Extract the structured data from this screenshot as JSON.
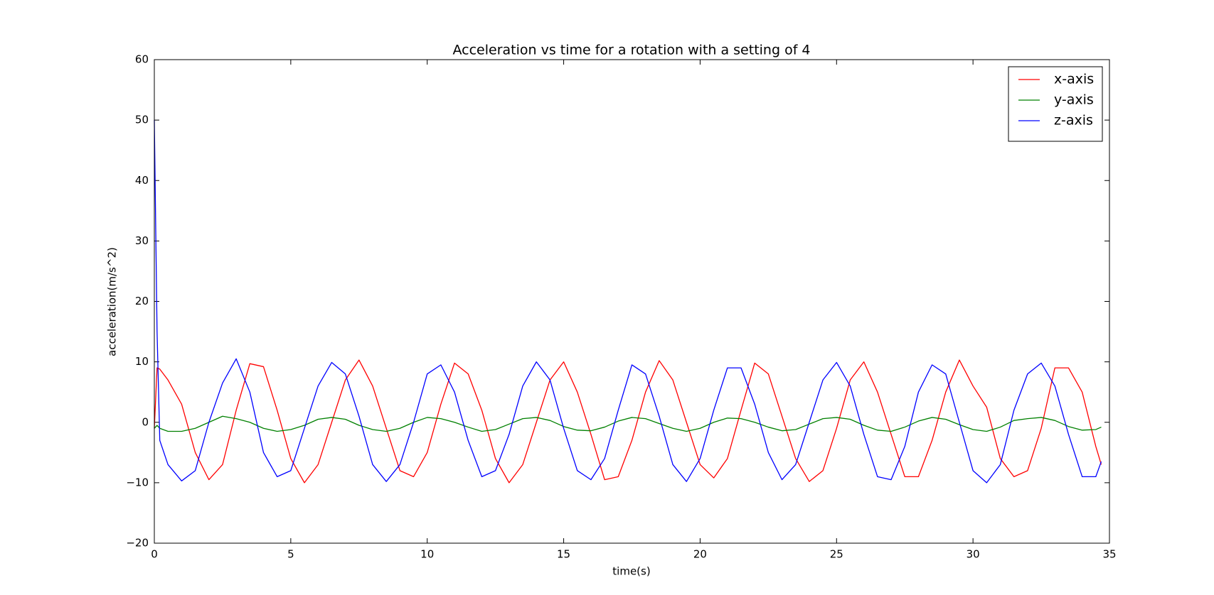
{
  "chart_data": {
    "type": "line",
    "title": "Acceleration vs time for a rotation with a setting of 4",
    "x_label": "time(s)",
    "y_label": "acceleration(m/s^2)",
    "xlim": [
      0,
      35
    ],
    "ylim": [
      -20,
      60
    ],
    "xticks": [
      0,
      5,
      10,
      15,
      20,
      25,
      30,
      35
    ],
    "yticks": [
      {
        "value": -20,
        "label": "−20"
      },
      {
        "value": -10,
        "label": "−10"
      },
      0,
      10,
      20,
      30,
      40,
      50,
      60
    ],
    "legend": "upper right",
    "x": [
      0,
      0.1,
      0.2,
      0.5,
      1,
      1.5,
      2,
      2.5,
      3,
      3.5,
      4,
      4.5,
      5,
      5.5,
      6,
      6.5,
      7,
      7.5,
      8,
      8.5,
      9,
      9.5,
      10,
      10.5,
      11,
      11.5,
      12,
      12.5,
      13,
      13.5,
      14,
      14.5,
      15,
      15.5,
      16,
      16.5,
      17,
      17.5,
      18,
      18.5,
      19,
      19.5,
      20,
      20.5,
      21,
      21.5,
      22,
      22.5,
      23,
      23.5,
      24,
      24.5,
      25,
      25.5,
      26,
      26.5,
      27,
      27.5,
      28,
      28.5,
      29,
      29.5,
      30,
      30.5,
      31,
      31.5,
      32,
      32.5,
      33,
      33.5,
      34,
      34.5,
      34.7
    ],
    "series": [
      {
        "name": "x-axis",
        "color": "#ff0000",
        "values": [
          -1,
          9,
          8.8,
          7,
          3,
          -5,
          -9.5,
          -7,
          2,
          9.7,
          9.2,
          2,
          -6,
          -10,
          -7,
          0,
          7,
          10.3,
          6,
          -1,
          -8,
          -9,
          -5,
          3,
          9.8,
          8,
          2,
          -6,
          -10,
          -7,
          0,
          7,
          10,
          5,
          -2,
          -9.5,
          -9,
          -3,
          5,
          10.2,
          7,
          0,
          -7,
          -9.2,
          -6,
          2,
          9.8,
          8,
          1,
          -6,
          -9.8,
          -8,
          -1,
          7,
          10,
          5,
          -2,
          -9,
          -9,
          -3,
          5,
          10.3,
          6,
          2.5,
          -6,
          -9,
          -8,
          -1,
          9,
          9,
          5,
          -4,
          -7
        ]
      },
      {
        "name": "y-axis",
        "color": "#008000",
        "values": [
          -1,
          -0.5,
          -1,
          -1.5,
          -1.5,
          -1,
          0,
          1,
          0.6,
          0,
          -1,
          -1.5,
          -1.2,
          -0.5,
          0.5,
          0.8,
          0.5,
          -0.5,
          -1.2,
          -1.5,
          -1,
          0,
          0.8,
          0.6,
          0,
          -0.8,
          -1.5,
          -1.2,
          -0.3,
          0.6,
          0.8,
          0.3,
          -0.7,
          -1.3,
          -1.4,
          -0.8,
          0.2,
          0.8,
          0.6,
          -0.2,
          -1,
          -1.5,
          -1,
          0,
          0.7,
          0.6,
          0,
          -0.8,
          -1.4,
          -1.2,
          -0.3,
          0.6,
          0.8,
          0.5,
          -0.5,
          -1.3,
          -1.5,
          -0.8,
          0.2,
          0.8,
          0.5,
          -0.4,
          -1.2,
          -1.5,
          -0.8,
          0.3,
          0.6,
          0.8,
          0.3,
          -0.7,
          -1.3,
          -1.2,
          -0.8
        ]
      },
      {
        "name": "z-axis",
        "color": "#0000ff",
        "values": [
          50,
          15,
          -3,
          -7,
          -9.7,
          -8,
          0,
          6.5,
          10.5,
          5,
          -5,
          -9,
          -8,
          -1,
          6,
          9.9,
          8,
          1,
          -7,
          -9.8,
          -7,
          0,
          8,
          9.5,
          5,
          -3,
          -9,
          -8,
          -2,
          6,
          10,
          7,
          -1,
          -8,
          -9.5,
          -6,
          2,
          9.5,
          8,
          1,
          -7,
          -9.8,
          -6,
          2,
          9,
          9,
          3,
          -5,
          -9.5,
          -7,
          0,
          7,
          9.9,
          6,
          -2,
          -9,
          -9.5,
          -4,
          5,
          9.5,
          8,
          0,
          -8,
          -10,
          -7,
          2,
          8,
          9.8,
          6,
          -2,
          -9,
          -9,
          -6.5
        ]
      }
    ]
  }
}
